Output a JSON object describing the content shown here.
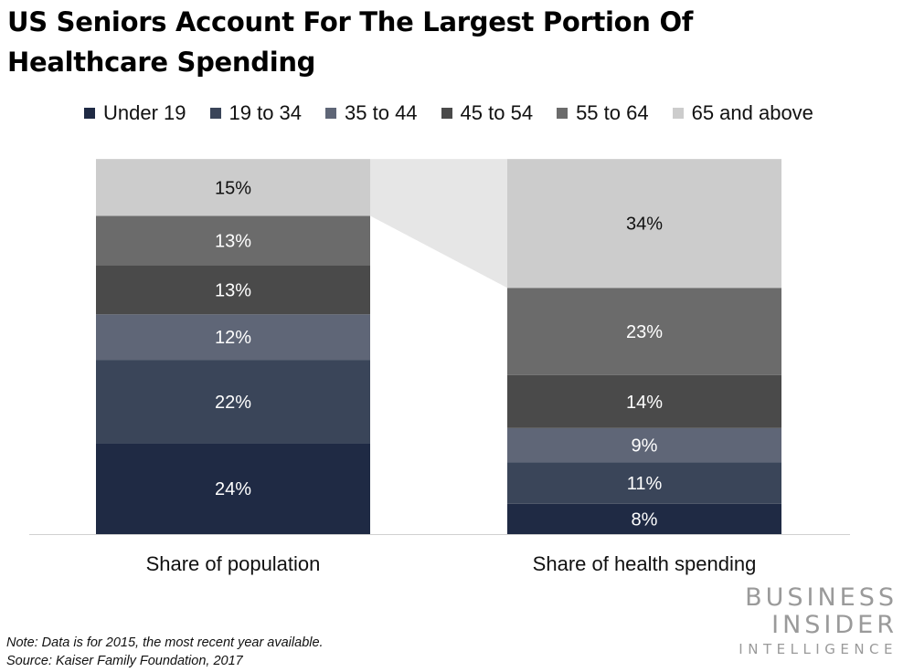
{
  "title_line1": "US Seniors Account For The Largest Portion Of",
  "title_line2": "Healthcare Spending",
  "legend": [
    {
      "label": "Under 19",
      "color": "#1f2a44"
    },
    {
      "label": "19 to 34",
      "color": "#3a4559"
    },
    {
      "label": "35 to 44",
      "color": "#5f6677"
    },
    {
      "label": "45 to 54",
      "color": "#4a4a4a"
    },
    {
      "label": "55 to 64",
      "color": "#6b6b6b"
    },
    {
      "label": "65 and above",
      "color": "#cccccc"
    }
  ],
  "chart_data": {
    "type": "bar",
    "stacked": true,
    "categories": [
      "Share of population",
      "Share of health spending"
    ],
    "series": [
      {
        "name": "Under 19",
        "values": [
          24,
          8
        ],
        "color": "#1f2a44"
      },
      {
        "name": "19 to 34",
        "values": [
          22,
          11
        ],
        "color": "#3a4559"
      },
      {
        "name": "35 to 44",
        "values": [
          12,
          9
        ],
        "color": "#5f6677"
      },
      {
        "name": "45 to 54",
        "values": [
          13,
          14
        ],
        "color": "#4a4a4a"
      },
      {
        "name": "55 to 64",
        "values": [
          13,
          23
        ],
        "color": "#6b6b6b"
      },
      {
        "name": "65 and above",
        "values": [
          15,
          34
        ],
        "color": "#cccccc"
      }
    ],
    "value_suffix": "%",
    "ylim": [
      0,
      100
    ],
    "highlight_series": "65 and above",
    "connector_color": "#e6e6e6",
    "legend_position": "top",
    "grid": false
  },
  "note": "Note: Data is for 2015, the most recent year available.",
  "source": "Source: Kaiser Family Foundation, 2017",
  "logo": {
    "line1": "BUSINESS",
    "line2": "INSIDER",
    "line3": "INTELLIGENCE"
  }
}
